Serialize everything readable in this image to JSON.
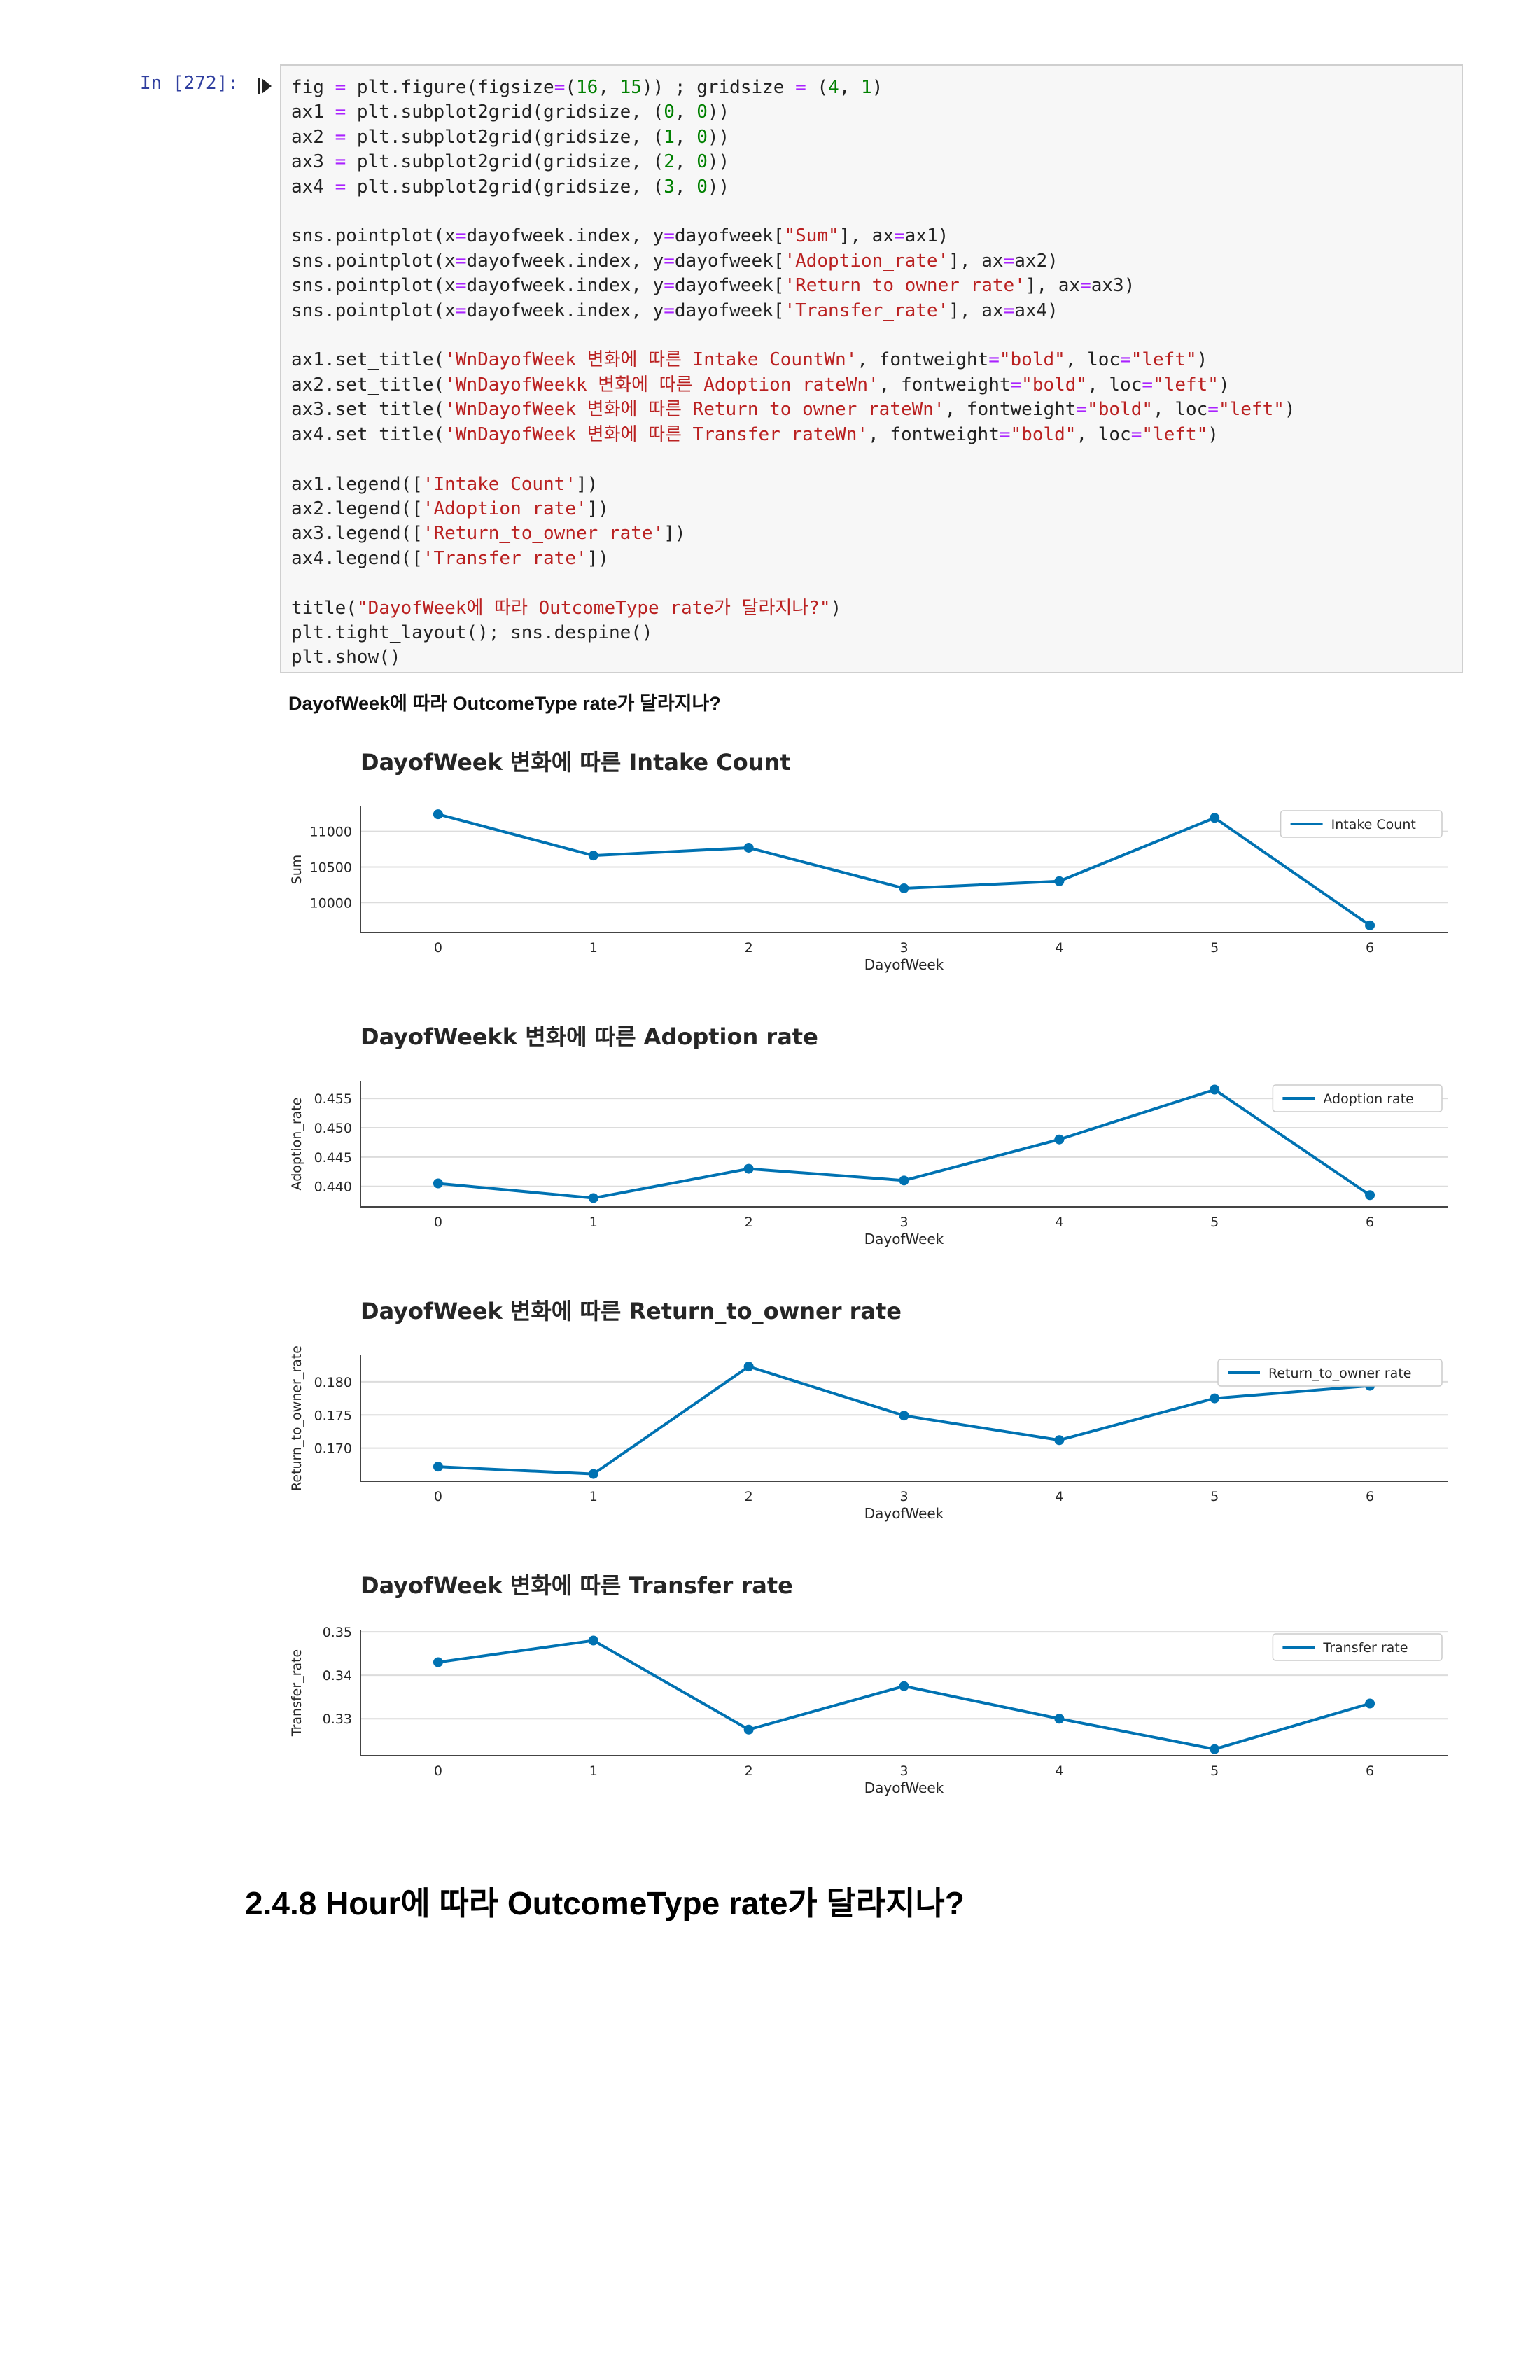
{
  "cell": {
    "prompt": "In [272]:",
    "code_lines": [
      [
        [
          "fig ",
          ""
        ],
        [
          "=",
          "o"
        ],
        [
          " plt.figure(figsize",
          ""
        ],
        [
          "=",
          "o"
        ],
        [
          "(",
          ""
        ],
        [
          "16",
          "n"
        ],
        [
          ", ",
          ""
        ],
        [
          "15",
          "n"
        ],
        [
          ")) ; gridsize ",
          ""
        ],
        [
          "=",
          "o"
        ],
        [
          " (",
          ""
        ],
        [
          "4",
          "n"
        ],
        [
          ", ",
          ""
        ],
        [
          "1",
          "n"
        ],
        [
          ")",
          ""
        ]
      ],
      [
        [
          "ax1 ",
          ""
        ],
        [
          "=",
          "o"
        ],
        [
          " plt.subplot2grid(gridsize, (",
          ""
        ],
        [
          "0",
          "n"
        ],
        [
          ", ",
          ""
        ],
        [
          "0",
          "n"
        ],
        [
          "))",
          ""
        ]
      ],
      [
        [
          "ax2 ",
          ""
        ],
        [
          "=",
          "o"
        ],
        [
          " plt.subplot2grid(gridsize, (",
          ""
        ],
        [
          "1",
          "n"
        ],
        [
          ", ",
          ""
        ],
        [
          "0",
          "n"
        ],
        [
          "))",
          ""
        ]
      ],
      [
        [
          "ax3 ",
          ""
        ],
        [
          "=",
          "o"
        ],
        [
          " plt.subplot2grid(gridsize, (",
          ""
        ],
        [
          "2",
          "n"
        ],
        [
          ", ",
          ""
        ],
        [
          "0",
          "n"
        ],
        [
          "))",
          ""
        ]
      ],
      [
        [
          "ax4 ",
          ""
        ],
        [
          "=",
          "o"
        ],
        [
          " plt.subplot2grid(gridsize, (",
          ""
        ],
        [
          "3",
          "n"
        ],
        [
          ", ",
          ""
        ],
        [
          "0",
          "n"
        ],
        [
          "))",
          ""
        ]
      ],
      [
        [
          "",
          ""
        ]
      ],
      [
        [
          "sns.pointplot(x",
          ""
        ],
        [
          "=",
          "o"
        ],
        [
          "dayofweek.index, y",
          ""
        ],
        [
          "=",
          "o"
        ],
        [
          "dayofweek[",
          ""
        ],
        [
          "\"Sum\"",
          "s"
        ],
        [
          "], ax",
          ""
        ],
        [
          "=",
          "o"
        ],
        [
          "ax1)",
          ""
        ]
      ],
      [
        [
          "sns.pointplot(x",
          ""
        ],
        [
          "=",
          "o"
        ],
        [
          "dayofweek.index, y",
          ""
        ],
        [
          "=",
          "o"
        ],
        [
          "dayofweek[",
          ""
        ],
        [
          "'Adoption_rate'",
          "s"
        ],
        [
          "], ax",
          ""
        ],
        [
          "=",
          "o"
        ],
        [
          "ax2)",
          ""
        ]
      ],
      [
        [
          "sns.pointplot(x",
          ""
        ],
        [
          "=",
          "o"
        ],
        [
          "dayofweek.index, y",
          ""
        ],
        [
          "=",
          "o"
        ],
        [
          "dayofweek[",
          ""
        ],
        [
          "'Return_to_owner_rate'",
          "s"
        ],
        [
          "], ax",
          ""
        ],
        [
          "=",
          "o"
        ],
        [
          "ax3)",
          ""
        ]
      ],
      [
        [
          "sns.pointplot(x",
          ""
        ],
        [
          "=",
          "o"
        ],
        [
          "dayofweek.index, y",
          ""
        ],
        [
          "=",
          "o"
        ],
        [
          "dayofweek[",
          ""
        ],
        [
          "'Transfer_rate'",
          "s"
        ],
        [
          "], ax",
          ""
        ],
        [
          "=",
          "o"
        ],
        [
          "ax4)",
          ""
        ]
      ],
      [
        [
          "",
          ""
        ]
      ],
      [
        [
          "ax1.set_title(",
          ""
        ],
        [
          "'WnDayofWeek 변화에 따른 Intake CountWn'",
          "s"
        ],
        [
          ", fontweight",
          ""
        ],
        [
          "=",
          "o"
        ],
        [
          "\"bold\"",
          "s"
        ],
        [
          ", loc",
          ""
        ],
        [
          "=",
          "o"
        ],
        [
          "\"left\"",
          "s"
        ],
        [
          ")",
          ""
        ]
      ],
      [
        [
          "ax2.set_title(",
          ""
        ],
        [
          "'WnDayofWeekk 변화에 따른 Adoption rateWn'",
          "s"
        ],
        [
          ", fontweight",
          ""
        ],
        [
          "=",
          "o"
        ],
        [
          "\"bold\"",
          "s"
        ],
        [
          ", loc",
          ""
        ],
        [
          "=",
          "o"
        ],
        [
          "\"left\"",
          "s"
        ],
        [
          ")",
          ""
        ]
      ],
      [
        [
          "ax3.set_title(",
          ""
        ],
        [
          "'WnDayofWeek 변화에 따른 Return_to_owner rateWn'",
          "s"
        ],
        [
          ", fontweight",
          ""
        ],
        [
          "=",
          "o"
        ],
        [
          "\"bold\"",
          "s"
        ],
        [
          ", loc",
          ""
        ],
        [
          "=",
          "o"
        ],
        [
          "\"left\"",
          "s"
        ],
        [
          ")",
          ""
        ]
      ],
      [
        [
          "ax4.set_title(",
          ""
        ],
        [
          "'WnDayofWeek 변화에 따른 Transfer rateWn'",
          "s"
        ],
        [
          ", fontweight",
          ""
        ],
        [
          "=",
          "o"
        ],
        [
          "\"bold\"",
          "s"
        ],
        [
          ", loc",
          ""
        ],
        [
          "=",
          "o"
        ],
        [
          "\"left\"",
          "s"
        ],
        [
          ")",
          ""
        ]
      ],
      [
        [
          "",
          ""
        ]
      ],
      [
        [
          "ax1.legend([",
          ""
        ],
        [
          "'Intake Count'",
          "s"
        ],
        [
          "])",
          ""
        ]
      ],
      [
        [
          "ax2.legend([",
          ""
        ],
        [
          "'Adoption rate'",
          "s"
        ],
        [
          "])",
          ""
        ]
      ],
      [
        [
          "ax3.legend([",
          ""
        ],
        [
          "'Return_to_owner rate'",
          "s"
        ],
        [
          "])",
          ""
        ]
      ],
      [
        [
          "ax4.legend([",
          ""
        ],
        [
          "'Transfer rate'",
          "s"
        ],
        [
          "])",
          ""
        ]
      ],
      [
        [
          "",
          ""
        ]
      ],
      [
        [
          "title(",
          ""
        ],
        [
          "\"DayofWeek에 따라 OutcomeType rate가 달라지나?\"",
          "s"
        ],
        [
          ")",
          ""
        ]
      ],
      [
        [
          "plt.tight_layout(); sns.despine()",
          ""
        ]
      ],
      [
        [
          "plt.show()",
          ""
        ]
      ]
    ]
  },
  "output_title": "DayofWeek에 따라 OutcomeType rate가 달라지나?",
  "chart_color": "#0072b2",
  "chart_data": [
    {
      "type": "line",
      "title": "DayofWeek 변화에 따른 Intake Count",
      "xlabel": "DayofWeek",
      "ylabel": "Sum",
      "x": [
        0,
        1,
        2,
        3,
        4,
        5,
        6
      ],
      "series": [
        {
          "name": "Intake Count",
          "values": [
            11240,
            10660,
            10770,
            10200,
            10300,
            11190,
            9680
          ]
        }
      ],
      "ylim": [
        9580,
        11350
      ],
      "yticks": [
        10000,
        10500,
        11000
      ],
      "ytick_labels": [
        "10000",
        "10500",
        "11000"
      ],
      "grid": true,
      "legend": "upper-right"
    },
    {
      "type": "line",
      "title": "DayofWeekk 변화에 따른 Adoption rate",
      "xlabel": "DayofWeek",
      "ylabel": "Adoption_rate",
      "x": [
        0,
        1,
        2,
        3,
        4,
        5,
        6
      ],
      "series": [
        {
          "name": "Adoption rate",
          "values": [
            0.4405,
            0.438,
            0.443,
            0.441,
            0.448,
            0.4565,
            0.4385
          ]
        }
      ],
      "ylim": [
        0.4365,
        0.458
      ],
      "yticks": [
        0.44,
        0.445,
        0.45,
        0.455
      ],
      "ytick_labels": [
        "0.440",
        "0.445",
        "0.450",
        "0.455"
      ],
      "grid": true,
      "legend": "upper-right"
    },
    {
      "type": "line",
      "title": "DayofWeek 변화에 따른 Return_to_owner rate",
      "xlabel": "DayofWeek",
      "ylabel": "Return_to_owner_rate",
      "x": [
        0,
        1,
        2,
        3,
        4,
        5,
        6
      ],
      "series": [
        {
          "name": "Return_to_owner rate",
          "values": [
            0.1672,
            0.1661,
            0.1823,
            0.1749,
            0.1712,
            0.1775,
            0.1794
          ]
        }
      ],
      "ylim": [
        0.165,
        0.184
      ],
      "yticks": [
        0.17,
        0.175,
        0.18
      ],
      "ytick_labels": [
        "0.170",
        "0.175",
        "0.180"
      ],
      "grid": true,
      "legend": "upper-right"
    },
    {
      "type": "line",
      "title": "DayofWeek 변화에 따른 Transfer rate",
      "xlabel": "DayofWeek",
      "ylabel": "Transfer_rate",
      "x": [
        0,
        1,
        2,
        3,
        4,
        5,
        6
      ],
      "series": [
        {
          "name": "Transfer rate",
          "values": [
            0.343,
            0.348,
            0.3275,
            0.3375,
            0.33,
            0.323,
            0.3335
          ]
        }
      ],
      "ylim": [
        0.3215,
        0.3505
      ],
      "yticks": [
        0.33,
        0.34,
        0.35
      ],
      "ytick_labels": [
        "0.33",
        "0.34",
        "0.35"
      ],
      "grid": true,
      "legend": "upper-right"
    }
  ],
  "section_heading": "2.4.8 Hour에 따라 OutcomeType rate가 달라지나?"
}
